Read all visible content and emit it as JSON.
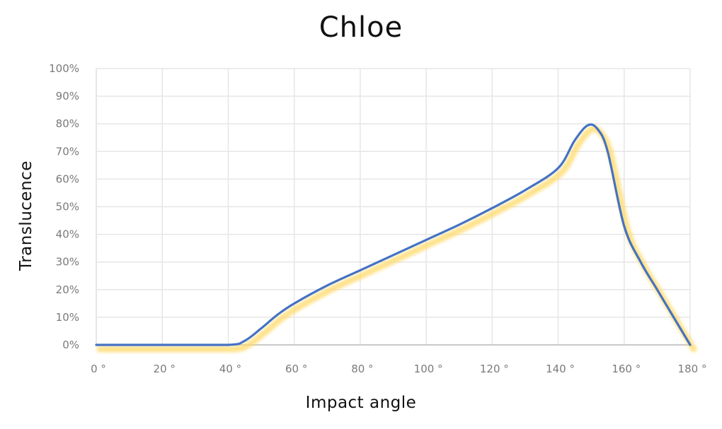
{
  "title": "Chloe",
  "x_axis_title": "Impact angle",
  "y_axis_title": "Translucence",
  "colors": {
    "line": "#4472c4",
    "glow": "#ffd966",
    "grid": "#e6e6e6",
    "axis": "#c8c8c8",
    "tick_text": "#7a7a7a",
    "title_text": "#111111"
  },
  "y_ticks": [
    "0%",
    "10%",
    "20%",
    "30%",
    "40%",
    "50%",
    "60%",
    "70%",
    "80%",
    "90%",
    "100%"
  ],
  "x_ticks": [
    "0 °",
    "20 °",
    "40 °",
    "60 °",
    "80 °",
    "100 °",
    "120 °",
    "140 °",
    "160 °",
    "180 °"
  ],
  "chart_data": {
    "type": "line",
    "title": "Chloe",
    "xlabel": "Impact angle",
    "ylabel": "Translucence",
    "xlim": [
      0,
      180
    ],
    "ylim": [
      0,
      100
    ],
    "x_unit": "°",
    "y_unit": "%",
    "grid": true,
    "legend": "none",
    "series": [
      {
        "name": "Translucence",
        "smooth": true,
        "x": [
          0,
          20,
          40,
          45,
          50,
          55,
          60,
          70,
          80,
          90,
          100,
          110,
          120,
          130,
          140,
          145,
          149,
          152,
          155,
          160,
          165,
          170,
          175,
          180
        ],
        "y": [
          0,
          0,
          0,
          1.5,
          6,
          11,
          15,
          21.5,
          27,
          32.5,
          38,
          43.5,
          49.5,
          56,
          64,
          74,
          79.5,
          78,
          70,
          43,
          30,
          20,
          10,
          0
        ]
      }
    ]
  }
}
